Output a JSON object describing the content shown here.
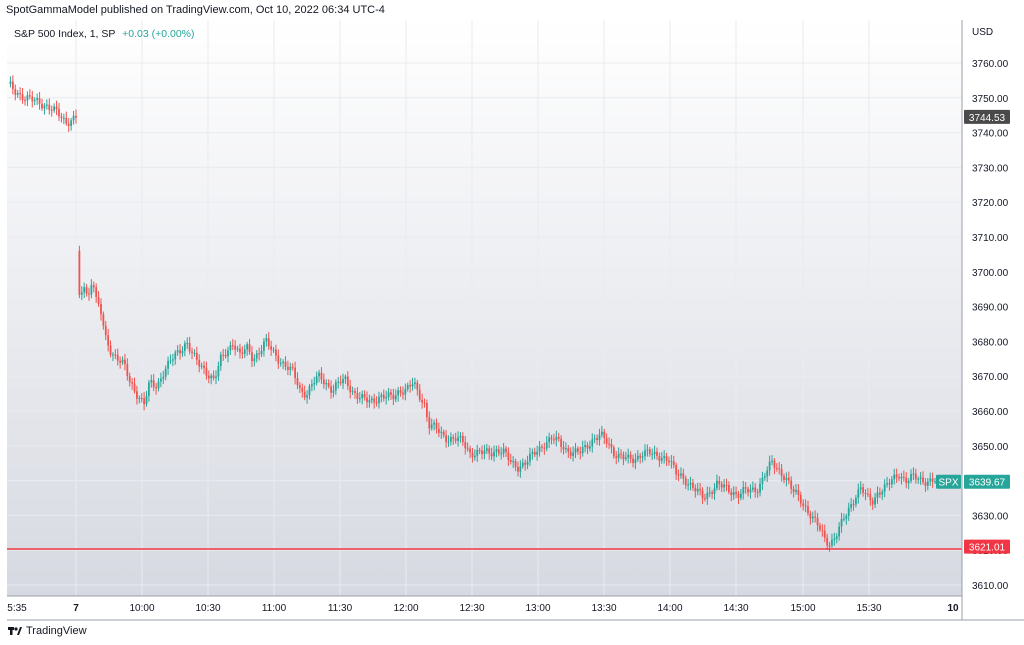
{
  "header": {
    "published_text": "SpotGammaModel published on TradingView.com, Oct 10, 2022 06:34 UTC-4"
  },
  "legend": {
    "symbol": "S&P 500 Index, 1, SP",
    "change": "+0.03 (+0.00%)"
  },
  "footer": {
    "brand": "TradingView",
    "logo_icon": "tradingview-logo-icon"
  },
  "colors": {
    "up": "#26a69a",
    "down": "#ef5350",
    "line": "#f23645",
    "grid": "#e8ebf0"
  },
  "chart_data": {
    "type": "candlestick",
    "currency": "USD",
    "y_range": [
      3603,
      3771
    ],
    "y_ticks": [
      "3760.00",
      "3750.00",
      "3740.00",
      "3730.00",
      "3720.00",
      "3710.00",
      "3700.00",
      "3690.00",
      "3680.00",
      "3670.00",
      "3660.00",
      "3650.00",
      "3640.00",
      "3630.00",
      "3620.00",
      "3610.00"
    ],
    "x_ticks": [
      "5:35",
      "7",
      "10:00",
      "10:30",
      "11:00",
      "11:30",
      "12:00",
      "12:30",
      "13:00",
      "13:30",
      "14:00",
      "14:30",
      "15:00",
      "15:30",
      "10"
    ],
    "price_labels": [
      {
        "text": "3744.53",
        "value": 3744.53,
        "color": "#4a4a4a"
      },
      {
        "text": "3639.67",
        "value": 3639.67,
        "color": "#26a69a",
        "symbol": "SPX"
      },
      {
        "text": "3621.01",
        "value": 3621.01,
        "color": "#f23645"
      }
    ],
    "horizontal_line": {
      "value": 3621.01
    },
    "segments": [
      {
        "name": "prior-session",
        "points": [
          [
            0,
            3754
          ],
          [
            0.1,
            3752
          ],
          [
            0.25,
            3750
          ],
          [
            0.4,
            3749
          ],
          [
            0.55,
            3748
          ],
          [
            0.7,
            3746
          ],
          [
            0.85,
            3743
          ],
          [
            1,
            3744.5
          ]
        ]
      },
      {
        "name": "session",
        "points": [
          [
            0,
            3706
          ],
          [
            0.003,
            3691
          ],
          [
            0.008,
            3697
          ],
          [
            0.013,
            3692
          ],
          [
            0.018,
            3699
          ],
          [
            0.022,
            3692
          ],
          [
            0.028,
            3688
          ],
          [
            0.033,
            3681
          ],
          [
            0.04,
            3677
          ],
          [
            0.048,
            3675
          ],
          [
            0.055,
            3673
          ],
          [
            0.062,
            3668
          ],
          [
            0.07,
            3665
          ],
          [
            0.078,
            3662
          ],
          [
            0.085,
            3668
          ],
          [
            0.093,
            3667
          ],
          [
            0.1,
            3671
          ],
          [
            0.108,
            3674
          ],
          [
            0.115,
            3676
          ],
          [
            0.122,
            3678
          ],
          [
            0.128,
            3680
          ],
          [
            0.135,
            3676
          ],
          [
            0.143,
            3673
          ],
          [
            0.152,
            3671
          ],
          [
            0.16,
            3669
          ],
          [
            0.168,
            3675
          ],
          [
            0.175,
            3677
          ],
          [
            0.182,
            3680
          ],
          [
            0.19,
            3676
          ],
          [
            0.198,
            3678
          ],
          [
            0.205,
            3675
          ],
          [
            0.212,
            3677
          ],
          [
            0.22,
            3680
          ],
          [
            0.228,
            3677
          ],
          [
            0.235,
            3675
          ],
          [
            0.243,
            3673
          ],
          [
            0.252,
            3671
          ],
          [
            0.26,
            3666
          ],
          [
            0.268,
            3665
          ],
          [
            0.275,
            3668
          ],
          [
            0.283,
            3670
          ],
          [
            0.29,
            3668
          ],
          [
            0.298,
            3666
          ],
          [
            0.305,
            3668
          ],
          [
            0.313,
            3669
          ],
          [
            0.32,
            3666
          ],
          [
            0.328,
            3664
          ],
          [
            0.336,
            3663
          ],
          [
            0.344,
            3663
          ],
          [
            0.352,
            3664
          ],
          [
            0.36,
            3664
          ],
          [
            0.368,
            3664
          ],
          [
            0.376,
            3666
          ],
          [
            0.384,
            3666
          ],
          [
            0.392,
            3668
          ],
          [
            0.398,
            3665
          ],
          [
            0.405,
            3662
          ],
          [
            0.41,
            3656
          ],
          [
            0.418,
            3655
          ],
          [
            0.426,
            3653
          ],
          [
            0.434,
            3652
          ],
          [
            0.442,
            3652
          ],
          [
            0.45,
            3651
          ],
          [
            0.458,
            3648
          ],
          [
            0.466,
            3648
          ],
          [
            0.474,
            3648
          ],
          [
            0.482,
            3648
          ],
          [
            0.49,
            3649
          ],
          [
            0.498,
            3648
          ],
          [
            0.506,
            3645
          ],
          [
            0.514,
            3644
          ],
          [
            0.522,
            3645
          ],
          [
            0.53,
            3647
          ],
          [
            0.538,
            3649
          ],
          [
            0.546,
            3651
          ],
          [
            0.554,
            3652
          ],
          [
            0.562,
            3651
          ],
          [
            0.57,
            3649
          ],
          [
            0.578,
            3648
          ],
          [
            0.586,
            3648
          ],
          [
            0.594,
            3650
          ],
          [
            0.602,
            3652
          ],
          [
            0.61,
            3653
          ],
          [
            0.618,
            3651
          ],
          [
            0.626,
            3648
          ],
          [
            0.634,
            3647
          ],
          [
            0.642,
            3646
          ],
          [
            0.65,
            3646
          ],
          [
            0.658,
            3648
          ],
          [
            0.666,
            3648
          ],
          [
            0.674,
            3647
          ],
          [
            0.682,
            3647
          ],
          [
            0.69,
            3646
          ],
          [
            0.698,
            3642
          ],
          [
            0.706,
            3641
          ],
          [
            0.714,
            3639
          ],
          [
            0.722,
            3637
          ],
          [
            0.73,
            3635
          ],
          [
            0.738,
            3637
          ],
          [
            0.746,
            3639
          ],
          [
            0.754,
            3638
          ],
          [
            0.762,
            3637
          ],
          [
            0.77,
            3636
          ],
          [
            0.778,
            3637
          ],
          [
            0.786,
            3637
          ],
          [
            0.794,
            3638
          ],
          [
            0.802,
            3642
          ],
          [
            0.81,
            3645
          ],
          [
            0.818,
            3643
          ],
          [
            0.826,
            3641
          ],
          [
            0.834,
            3637
          ],
          [
            0.842,
            3635
          ],
          [
            0.85,
            3632
          ],
          [
            0.858,
            3629
          ],
          [
            0.866,
            3626
          ],
          [
            0.872,
            3623
          ],
          [
            0.878,
            3622
          ],
          [
            0.884,
            3624
          ],
          [
            0.89,
            3627
          ],
          [
            0.896,
            3630
          ],
          [
            0.902,
            3633
          ],
          [
            0.908,
            3636
          ],
          [
            0.914,
            3638
          ],
          [
            0.92,
            3635
          ],
          [
            0.928,
            3634
          ],
          [
            0.934,
            3637
          ],
          [
            0.942,
            3638
          ],
          [
            0.95,
            3640
          ],
          [
            0.958,
            3642
          ],
          [
            0.966,
            3640
          ],
          [
            0.975,
            3641
          ],
          [
            0.985,
            3640
          ],
          [
            1,
            3640
          ]
        ]
      }
    ]
  }
}
